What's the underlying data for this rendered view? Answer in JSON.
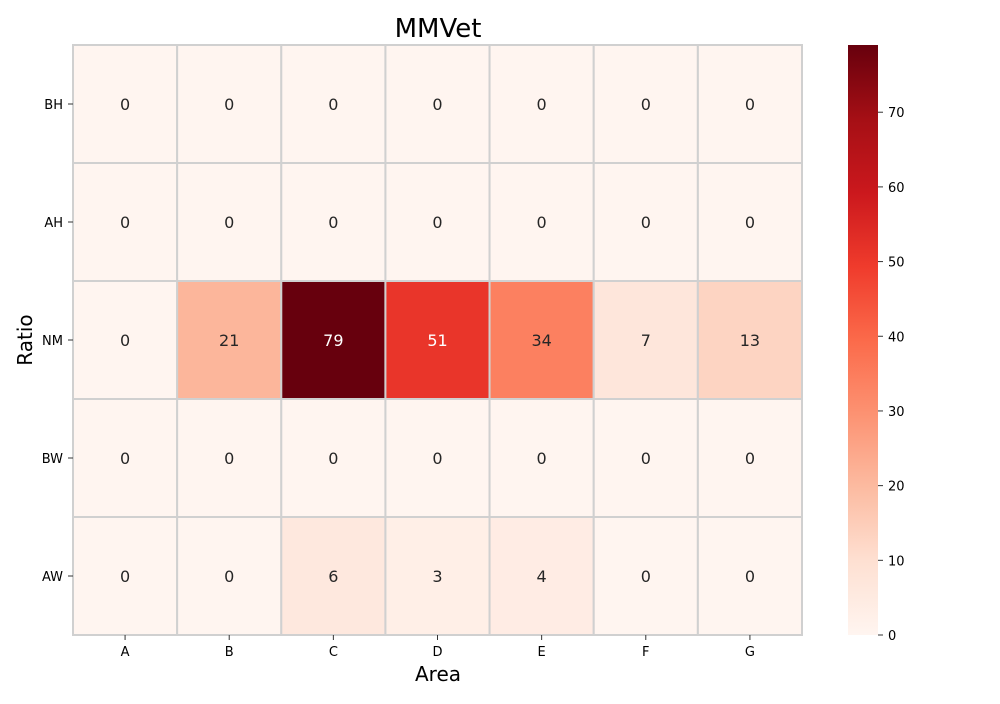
{
  "chart_data": {
    "type": "heatmap",
    "title": "MMVet",
    "xlabel": "Area",
    "ylabel": "Ratio",
    "x_categories": [
      "A",
      "B",
      "C",
      "D",
      "E",
      "F",
      "G"
    ],
    "y_categories": [
      "BH",
      "AH",
      "NM",
      "BW",
      "AW"
    ],
    "values": [
      [
        0,
        0,
        0,
        0,
        0,
        0,
        0
      ],
      [
        0,
        0,
        0,
        0,
        0,
        0,
        0
      ],
      [
        0,
        21,
        79,
        51,
        34,
        7,
        13
      ],
      [
        0,
        0,
        0,
        0,
        0,
        0,
        0
      ],
      [
        0,
        0,
        6,
        3,
        4,
        0,
        0
      ]
    ],
    "colorbar": {
      "range": [
        0,
        79
      ],
      "ticks": [
        0,
        10,
        20,
        30,
        40,
        50,
        60,
        70
      ],
      "colormap": "Reds"
    },
    "annotations": true,
    "grid": false
  }
}
